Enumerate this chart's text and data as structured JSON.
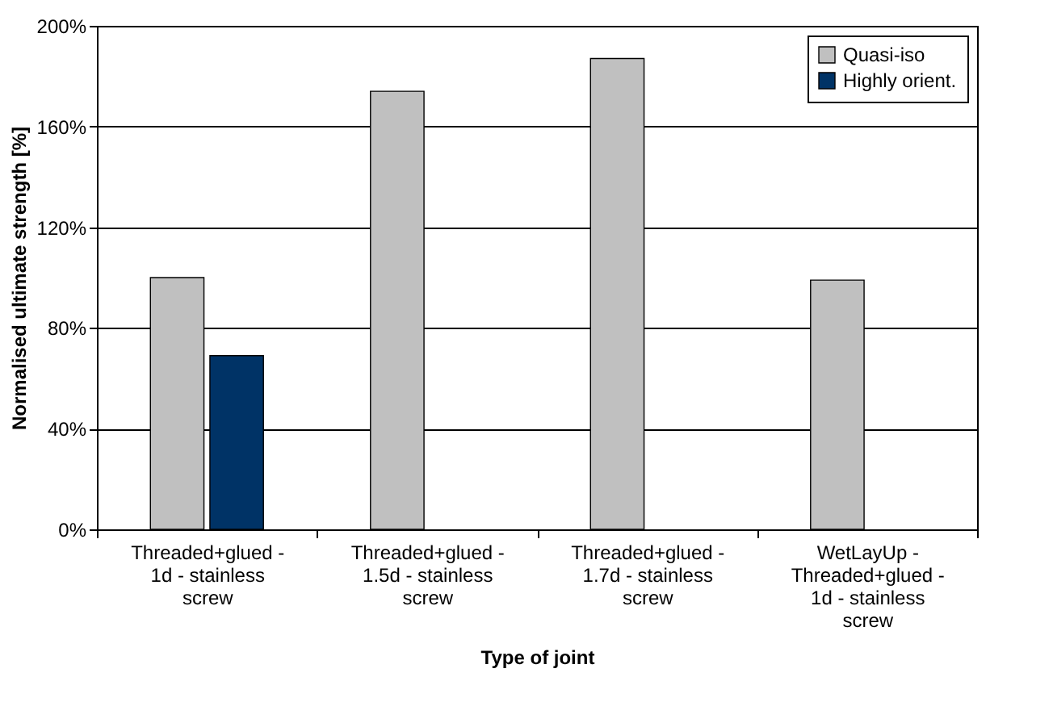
{
  "chart_data": {
    "type": "bar",
    "xlabel": "Type of joint",
    "ylabel": "Normalised ultimate strength [%]",
    "categories": [
      "Threaded+glued - 1d - stainless screw",
      "Threaded+glued - 1.5d - stainless screw",
      "Threaded+glued - 1.7d - stainless screw",
      "WetLayUp - Threaded+glued - 1d - stainless screw"
    ],
    "series": [
      {
        "name": "Quasi-iso",
        "color": "#c0c0c0",
        "values": [
          100,
          174,
          187,
          99
        ]
      },
      {
        "name": "Highly orient.",
        "color": "#003366",
        "values": [
          69,
          null,
          null,
          null
        ]
      }
    ],
    "ylim": [
      0,
      200
    ],
    "yticks": [
      {
        "value": 0,
        "label": "0%"
      },
      {
        "value": 40,
        "label": "40%"
      },
      {
        "value": 80,
        "label": "80%"
      },
      {
        "value": 120,
        "label": "120%"
      },
      {
        "value": 160,
        "label": "160%"
      },
      {
        "value": 200,
        "label": "200%"
      }
    ],
    "grid": "y",
    "legend": "top right"
  }
}
